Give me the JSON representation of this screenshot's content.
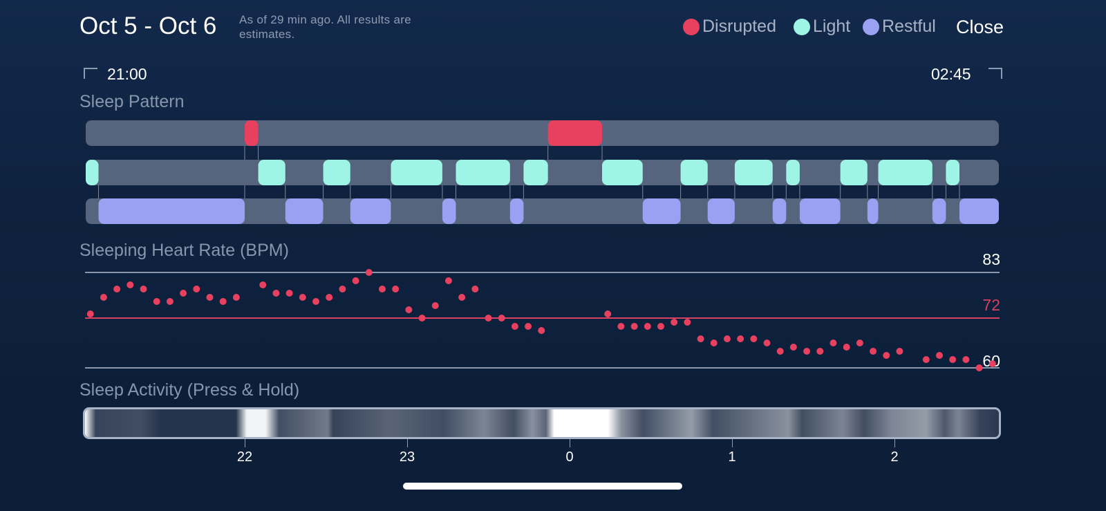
{
  "header": {
    "title": "Oct 5 - Oct 6",
    "subtitle": "As of 29 min ago. All results are estimates.",
    "close_label": "Close",
    "legend": [
      {
        "label": "Disrupted",
        "color": "#e8405f"
      },
      {
        "label": "Light",
        "color": "#9ef5e6"
      },
      {
        "label": "Restful",
        "color": "#9aa1f3"
      }
    ]
  },
  "range": {
    "start": "21:00",
    "end": "02:45",
    "start_icon": "bracket-left-icon",
    "end_icon": "bracket-right-icon"
  },
  "sections": {
    "pattern": "Sleep Pattern",
    "heart_rate": "Sleeping Heart Rate (BPM)",
    "activity": "Sleep Activity (Press & Hold)"
  },
  "chart_data": [
    {
      "type": "timeline",
      "rows": [
        "Disrupted",
        "Light",
        "Restful"
      ],
      "colors": {
        "Disrupted": "#e8405f",
        "Light": "#9ef5e6",
        "Restful": "#9aa1f3",
        "track": "#56657d"
      },
      "segments": [
        {
          "stage": "Light",
          "start": "21:01",
          "end": "21:06"
        },
        {
          "stage": "Restful",
          "start": "21:06",
          "end": "22:00"
        },
        {
          "stage": "Disrupted",
          "start": "22:00",
          "end": "22:05"
        },
        {
          "stage": "Light",
          "start": "22:05",
          "end": "22:15"
        },
        {
          "stage": "Restful",
          "start": "22:15",
          "end": "22:29"
        },
        {
          "stage": "Light",
          "start": "22:29",
          "end": "22:39"
        },
        {
          "stage": "Restful",
          "start": "22:39",
          "end": "22:54"
        },
        {
          "stage": "Light",
          "start": "22:54",
          "end": "23:13"
        },
        {
          "stage": "Restful",
          "start": "23:13",
          "end": "23:18"
        },
        {
          "stage": "Light",
          "start": "23:18",
          "end": "23:38"
        },
        {
          "stage": "Restful",
          "start": "23:38",
          "end": "23:43"
        },
        {
          "stage": "Light",
          "start": "23:43",
          "end": "23:52"
        },
        {
          "stage": "Disrupted",
          "start": "23:52",
          "end": "00:12"
        },
        {
          "stage": "Light",
          "start": "00:12",
          "end": "00:27"
        },
        {
          "stage": "Restful",
          "start": "00:27",
          "end": "00:41"
        },
        {
          "stage": "Light",
          "start": "00:41",
          "end": "00:51"
        },
        {
          "stage": "Restful",
          "start": "00:51",
          "end": "01:01"
        },
        {
          "stage": "Light",
          "start": "01:01",
          "end": "01:15"
        },
        {
          "stage": "Restful",
          "start": "01:15",
          "end": "01:20"
        },
        {
          "stage": "Light",
          "start": "01:20",
          "end": "01:25"
        },
        {
          "stage": "Restful",
          "start": "01:25",
          "end": "01:40"
        },
        {
          "stage": "Light",
          "start": "01:40",
          "end": "01:50"
        },
        {
          "stage": "Restful",
          "start": "01:50",
          "end": "01:54"
        },
        {
          "stage": "Light",
          "start": "01:54",
          "end": "02:14"
        },
        {
          "stage": "Restful",
          "start": "02:14",
          "end": "02:19"
        },
        {
          "stage": "Light",
          "start": "02:19",
          "end": "02:24"
        },
        {
          "stage": "Restful",
          "start": "02:24",
          "end": "02:39"
        }
      ]
    },
    {
      "type": "scatter",
      "ylabel": "BPM",
      "ylim": [
        60,
        83
      ],
      "reference_lines": [
        {
          "value": 83,
          "label": "83",
          "color": "#8b97ab"
        },
        {
          "value": 72,
          "label": "72",
          "color": "#d8415f"
        },
        {
          "value": 60,
          "label": "60",
          "color": "#8b97ab"
        }
      ],
      "point_color": "#e8405f",
      "start": "21:03",
      "interval_minutes": 4.9,
      "values": [
        73,
        77,
        79,
        80,
        79,
        76,
        76,
        78,
        79,
        77,
        76,
        77,
        null,
        80,
        78,
        78,
        77,
        76,
        77,
        79,
        81,
        83,
        79,
        79,
        74,
        72,
        75,
        81,
        77,
        79,
        72,
        72,
        70,
        70,
        69,
        null,
        null,
        null,
        null,
        73,
        70,
        70,
        70,
        70,
        71,
        71,
        67,
        66,
        67,
        67,
        67,
        66,
        64,
        65,
        64,
        64,
        66,
        65,
        66,
        64,
        63,
        64,
        null,
        62,
        63,
        62,
        62,
        60,
        61
      ]
    },
    {
      "type": "heatmap",
      "x_ticks": [
        "22",
        "23",
        "0",
        "1",
        "2"
      ],
      "intensity": [
        {
          "t": "21:00",
          "v": 1.0
        },
        {
          "t": "21:04",
          "v": 0.15
        },
        {
          "t": "21:21",
          "v": 0.2
        },
        {
          "t": "21:28",
          "v": 0.08
        },
        {
          "t": "21:56",
          "v": 0.08
        },
        {
          "t": "22:00",
          "v": 0.95
        },
        {
          "t": "22:07",
          "v": 0.95
        },
        {
          "t": "22:12",
          "v": 0.2
        },
        {
          "t": "22:30",
          "v": 0.4
        },
        {
          "t": "22:32",
          "v": 0.15
        },
        {
          "t": "22:53",
          "v": 0.3
        },
        {
          "t": "23:13",
          "v": 0.2
        },
        {
          "t": "23:28",
          "v": 0.45
        },
        {
          "t": "23:39",
          "v": 0.2
        },
        {
          "t": "23:46",
          "v": 0.5
        },
        {
          "t": "23:51",
          "v": 0.3
        },
        {
          "t": "23:54",
          "v": 1.0
        },
        {
          "t": "00:14",
          "v": 1.0
        },
        {
          "t": "00:19",
          "v": 0.5
        },
        {
          "t": "00:27",
          "v": 0.2
        },
        {
          "t": "00:45",
          "v": 0.55
        },
        {
          "t": "00:53",
          "v": 0.2
        },
        {
          "t": "01:21",
          "v": 0.5
        },
        {
          "t": "01:26",
          "v": 0.2
        },
        {
          "t": "01:41",
          "v": 0.45
        },
        {
          "t": "01:49",
          "v": 0.2
        },
        {
          "t": "01:59",
          "v": 0.45
        },
        {
          "t": "02:12",
          "v": 0.55
        },
        {
          "t": "02:19",
          "v": 0.25
        },
        {
          "t": "02:24",
          "v": 0.45
        },
        {
          "t": "02:32",
          "v": 0.15
        },
        {
          "t": "02:39",
          "v": 0.1
        }
      ]
    }
  ]
}
